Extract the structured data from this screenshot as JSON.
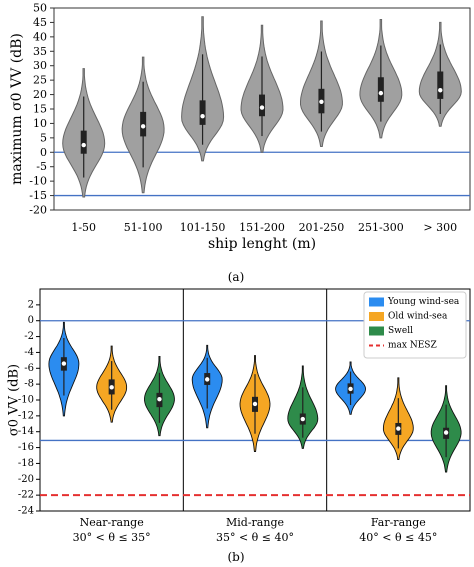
{
  "chart_data": [
    {
      "type": "violin",
      "panel_label": "(a)",
      "ylabel": "maximum σ0 VV (dB)",
      "xlabel": "ship lenght (m)",
      "ylim": [
        -20,
        50
      ],
      "yticks": [
        -20,
        -15,
        -10,
        -5,
        0,
        5,
        10,
        15,
        20,
        25,
        30,
        35,
        40,
        45,
        50
      ],
      "categories": [
        "1-50",
        "51-100",
        "101-150",
        "151-200",
        "201-250",
        "251-300",
        "> 300"
      ],
      "reference_lines": [
        0,
        -15
      ],
      "violin_color": "#a0a0a0",
      "reference_line_color": "#4472c4",
      "series": [
        {
          "values": [
            {
              "min": -15.5,
              "q1": -0.5,
              "median": 2.5,
              "q3": 7.5,
              "max": 29,
              "mode": 3
            },
            {
              "min": -14,
              "q1": 5.5,
              "median": 9,
              "q3": 14,
              "max": 33,
              "mode": 8
            },
            {
              "min": -3,
              "q1": 9.5,
              "median": 12.5,
              "q3": 18,
              "max": 47,
              "mode": 12
            },
            {
              "min": 0,
              "q1": 12.5,
              "median": 15.5,
              "q3": 20,
              "max": 44,
              "mode": 15
            },
            {
              "min": 2,
              "q1": 13.5,
              "median": 17.5,
              "q3": 22,
              "max": 45.5,
              "mode": 17
            },
            {
              "min": 5,
              "q1": 17.5,
              "median": 20.5,
              "q3": 26,
              "max": 46,
              "mode": 20
            },
            {
              "min": 9,
              "q1": 18.5,
              "median": 21.5,
              "q3": 28,
              "max": 45,
              "mode": 21
            }
          ]
        }
      ]
    },
    {
      "type": "violin",
      "panel_label": "(b)",
      "ylabel": "σ0 VV (dB)",
      "ylim": [
        -24,
        4
      ],
      "yticks": [
        -24,
        -22,
        -20,
        -18,
        -16,
        -14,
        -12,
        -10,
        -8,
        -6,
        -4,
        -2,
        0,
        2
      ],
      "groups": [
        {
          "name": "Near-range",
          "range": "30° < θ ≤ 35°"
        },
        {
          "name": "Mid-range",
          "range": "35° < θ ≤ 40°"
        },
        {
          "name": "Far-range",
          "range": "40° < θ ≤ 45°"
        }
      ],
      "reference_lines": [
        0,
        -15.1
      ],
      "nesz_line": -22,
      "legend": {
        "placement": "top-right",
        "entries": [
          {
            "label": "Young wind-sea",
            "color": "#2b8cf0",
            "kind": "patch"
          },
          {
            "label": "Old wind-sea",
            "color": "#f5a623",
            "kind": "patch"
          },
          {
            "label": "Swell",
            "color": "#2e8b4a",
            "kind": "patch"
          },
          {
            "label": "max NESZ",
            "color": "#e53030",
            "kind": "dashed-line"
          }
        ]
      },
      "series": [
        {
          "name": "Young wind-sea",
          "values": [
            {
              "min": -12,
              "q1": -6.3,
              "median": -5.4,
              "q3": -4.6,
              "max": -0.2,
              "mode": -5.4
            },
            {
              "min": -13.5,
              "q1": -8.1,
              "median": -7.4,
              "q3": -6.6,
              "max": -3.1,
              "mode": -7.4
            },
            {
              "min": -11.8,
              "q1": -9.2,
              "median": -8.6,
              "q3": -7.9,
              "max": -5.2,
              "mode": -8.6
            }
          ]
        },
        {
          "name": "Old wind-sea",
          "values": [
            {
              "min": -12.8,
              "q1": -9.3,
              "median": -8.4,
              "q3": -7.4,
              "max": -3.2,
              "mode": -8.4
            },
            {
              "min": -16.5,
              "q1": -11.5,
              "median": -10.5,
              "q3": -9.6,
              "max": -4.4,
              "mode": -10.5
            },
            {
              "min": -17.5,
              "q1": -14.4,
              "median": -13.6,
              "q3": -12.9,
              "max": -7.2,
              "mode": -13.6
            }
          ]
        },
        {
          "name": "Swell",
          "values": [
            {
              "min": -14.5,
              "q1": -10.9,
              "median": -9.9,
              "q3": -9.1,
              "max": -4.5,
              "mode": -9.9
            },
            {
              "min": -16.1,
              "q1": -13.1,
              "median": -12.4,
              "q3": -11.7,
              "max": -5.7,
              "mode": -12.4
            },
            {
              "min": -19.1,
              "q1": -14.9,
              "median": -14.1,
              "q3": -13.5,
              "max": -8.2,
              "mode": -14.1
            }
          ]
        }
      ]
    }
  ]
}
